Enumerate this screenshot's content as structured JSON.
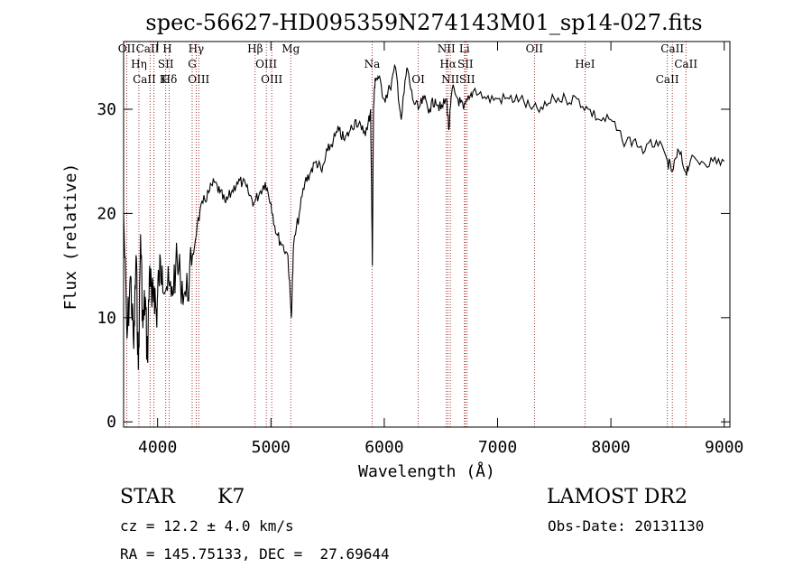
{
  "chart_data": {
    "type": "line",
    "title": "spec-56627-HD095359N274143M01_sp14-027.fits",
    "xlabel": "Wavelength (Å)",
    "ylabel": "Flux (relative)",
    "xlim": [
      3700,
      9050
    ],
    "ylim": [
      -0.5,
      36.5
    ],
    "xticks": [
      4000,
      5000,
      6000,
      7000,
      8000,
      9000
    ],
    "yticks": [
      0,
      10,
      20,
      30
    ],
    "grid": false,
    "series": [
      {
        "x": [
          3700,
          3730,
          3760,
          3790,
          3810,
          3830,
          3850,
          3870,
          3890,
          3910,
          3930,
          3950,
          3970,
          3990,
          4010,
          4040,
          4080,
          4120,
          4160,
          4200,
          4250,
          4300,
          4350,
          4400,
          4450,
          4500,
          4550,
          4600,
          4650,
          4700,
          4750,
          4800,
          4850,
          4900,
          4950,
          5000,
          5050,
          5100,
          5150,
          5180,
          5200,
          5250,
          5300,
          5350,
          5400,
          5450,
          5500,
          5550,
          5600,
          5650,
          5700,
          5750,
          5800,
          5850,
          5880,
          5895,
          5905,
          5920,
          5950,
          6000,
          6050,
          6100,
          6150,
          6200,
          6250,
          6300,
          6350,
          6400,
          6450,
          6500,
          6550,
          6570,
          6600,
          6650,
          6700,
          6750,
          6800,
          6900,
          7000,
          7100,
          7200,
          7300,
          7400,
          7500,
          7600,
          7700,
          7800,
          7900,
          8000,
          8100,
          8200,
          8300,
          8400,
          8500,
          8540,
          8600,
          8660,
          8700,
          8800,
          8900,
          9000
        ],
        "y": [
          20,
          8,
          14,
          7,
          16,
          5,
          18,
          9,
          12,
          6,
          15,
          11,
          13,
          10,
          14,
          15,
          13,
          12,
          15,
          14,
          12,
          15,
          19,
          21,
          22,
          23,
          22,
          21,
          22,
          23,
          23,
          22,
          21,
          22,
          23,
          21,
          18,
          17,
          16,
          10,
          17,
          20,
          23,
          24,
          25,
          24,
          26,
          27,
          28,
          27,
          28,
          29,
          28,
          28,
          30,
          15,
          30,
          33,
          33,
          31,
          32,
          34,
          29,
          34,
          31,
          30,
          31,
          30,
          31,
          30,
          31,
          28,
          32,
          31,
          30,
          31,
          32,
          31,
          31,
          31,
          31,
          30,
          30,
          31,
          31,
          31,
          30,
          29,
          29,
          27,
          27,
          26,
          27,
          25,
          24,
          26,
          24,
          25,
          25,
          25,
          25
        ]
      }
    ],
    "spectral_lines": [
      {
        "name": "OII",
        "wavelength": 3727
      },
      {
        "name": "Hη",
        "wavelength": 3835
      },
      {
        "name": "CaII K",
        "wavelength": 3934
      },
      {
        "name": "CaII H",
        "wavelength": 3968
      },
      {
        "name": "SII",
        "wavelength": 4072
      },
      {
        "name": "Hδ",
        "wavelength": 4102
      },
      {
        "name": "Hγ",
        "wavelength": 4340
      },
      {
        "name": "G",
        "wavelength": 4305
      },
      {
        "name": "OIII",
        "wavelength": 4363
      },
      {
        "name": "Hβ",
        "wavelength": 4861
      },
      {
        "name": "OIII",
        "wavelength": 4959
      },
      {
        "name": "OIII",
        "wavelength": 5007
      },
      {
        "name": "Mg",
        "wavelength": 5175
      },
      {
        "name": "Na",
        "wavelength": 5893
      },
      {
        "name": "OI",
        "wavelength": 6300
      },
      {
        "name": "NII",
        "wavelength": 6548
      },
      {
        "name": "Hα",
        "wavelength": 6563
      },
      {
        "name": "NII",
        "wavelength": 6583
      },
      {
        "name": "Li",
        "wavelength": 6708
      },
      {
        "name": "SII",
        "wavelength": 6716
      },
      {
        "name": "SII",
        "wavelength": 6731
      },
      {
        "name": "OII",
        "wavelength": 7325
      },
      {
        "name": "HeI",
        "wavelength": 7771
      },
      {
        "name": "CaII",
        "wavelength": 8498
      },
      {
        "name": "CaII",
        "wavelength": 8542
      },
      {
        "name": "CaII",
        "wavelength": 8662
      }
    ]
  },
  "footer": {
    "object_class": "STAR",
    "subclass": "K7",
    "survey": "LAMOST DR2",
    "cz": "cz = 12.2 ± 4.0 km/s",
    "obs_date": "Obs-Date: 20131130",
    "coords": "RA = 145.75133, DEC =  27.69644"
  },
  "colors": {
    "spectrum": "#000000",
    "line_markers": "#8b0000"
  }
}
